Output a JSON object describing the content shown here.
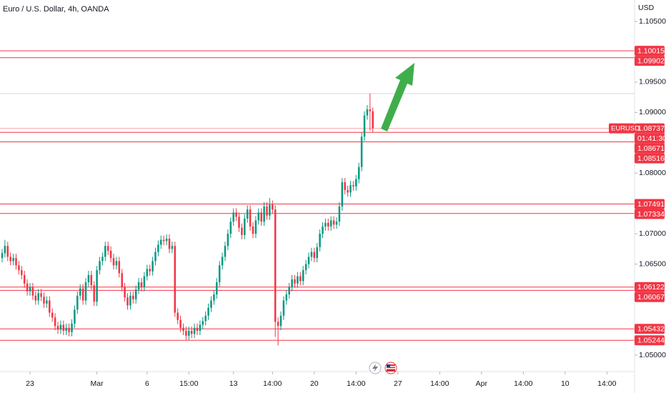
{
  "chart_data": {
    "type": "candlestick",
    "title": "Euro / U.S. Dollar, 4h, OANDA",
    "y_axis_label": "USD",
    "up_color": "#089981",
    "down_color": "#f23645",
    "level_color": "#f23645",
    "ylim": [
      1.04729,
      1.10853
    ],
    "yticks": [
      {
        "value": 1.105,
        "label": "1.10500"
      },
      {
        "value": 1.095,
        "label": "1.09500"
      },
      {
        "value": 1.09,
        "label": "1.09000"
      },
      {
        "value": 1.08,
        "label": "1.08000"
      },
      {
        "value": 1.07,
        "label": "1.07000"
      },
      {
        "value": 1.065,
        "label": "1.06500"
      },
      {
        "value": 1.05,
        "label": "1.05000"
      }
    ],
    "xlim": [
      -0.77,
      226.92
    ],
    "xticks": [
      {
        "value": 10,
        "label": "23"
      },
      {
        "value": 34,
        "label": "Mar"
      },
      {
        "value": 52,
        "label": "6"
      },
      {
        "value": 67,
        "label": "15:00"
      },
      {
        "value": 83,
        "label": "13"
      },
      {
        "value": 97,
        "label": "14:00"
      },
      {
        "value": 112,
        "label": "20"
      },
      {
        "value": 127,
        "label": "14:00"
      },
      {
        "value": 142,
        "label": "27"
      },
      {
        "value": 157,
        "label": "14:00"
      },
      {
        "value": 172,
        "label": "Apr"
      },
      {
        "value": 187,
        "label": "14:00"
      },
      {
        "value": 202,
        "label": "10"
      },
      {
        "value": 217,
        "label": "14:00"
      }
    ],
    "reference_line": 1.0931,
    "current_price": {
      "symbol": "EURUSD",
      "value": 1.08737,
      "label": "1.08737",
      "countdown": "01:41:30"
    },
    "levels": [
      {
        "value": 1.10015,
        "label": "1.10015"
      },
      {
        "value": 1.09902,
        "label": "1.09902"
      },
      {
        "value": 1.08671,
        "label": "1.08671"
      },
      {
        "value": 1.08516,
        "label": "1.08516"
      },
      {
        "value": 1.07491,
        "label": "1.07491"
      },
      {
        "value": 1.07334,
        "label": "1.07334"
      },
      {
        "value": 1.06122,
        "label": "1.06122"
      },
      {
        "value": 1.06067,
        "label": "1.06067"
      },
      {
        "value": 1.05432,
        "label": "1.05432"
      },
      {
        "value": 1.05244,
        "label": "1.05244"
      }
    ],
    "open": [
      1.066,
      1.0668,
      1.068,
      1.0662,
      1.0655,
      1.066,
      1.0648,
      1.064,
      1.0632,
      1.0618,
      1.0605,
      1.0612,
      1.0598,
      1.059,
      1.0602,
      1.0596,
      1.0585,
      1.059,
      1.057,
      1.0562,
      1.0548,
      1.0542,
      1.055,
      1.054,
      1.0545,
      1.0538,
      1.0552,
      1.0575,
      1.0598,
      1.061,
      1.059,
      1.062,
      1.0632,
      1.0615,
      1.0588,
      1.064,
      1.0655,
      1.0662,
      1.068,
      1.0672,
      1.066,
      1.0648,
      1.0655,
      1.0635,
      1.0612,
      1.0595,
      1.0582,
      1.0598,
      1.0592,
      1.0608,
      1.062,
      1.0612,
      1.063,
      1.0642,
      1.0638,
      1.0655,
      1.067,
      1.0682,
      1.069,
      1.0688,
      1.0692,
      1.0675,
      1.068,
      1.057,
      1.0558,
      1.0545,
      1.054,
      1.0532,
      1.054,
      1.0535,
      1.0545,
      1.054,
      1.055,
      1.0556,
      1.0565,
      1.0578,
      1.059,
      1.06,
      1.062,
      1.0648,
      1.0662,
      1.068,
      1.07,
      1.072,
      1.0735,
      1.0728,
      1.071,
      1.0698,
      1.0725,
      1.074,
      1.0712,
      1.07,
      1.0722,
      1.0735,
      1.072,
      1.0745,
      1.073,
      1.0748,
      1.074,
      1.0555,
      1.0548,
      1.0565,
      1.059,
      1.06,
      1.0612,
      1.0625,
      1.0618,
      1.063,
      1.0622,
      1.064,
      1.065,
      1.0662,
      1.067,
      1.066,
      1.0678,
      1.07,
      1.0712,
      1.0718,
      1.0712,
      1.0722,
      1.0715,
      1.072,
      1.0745,
      1.0785,
      1.0772,
      1.0768,
      1.078,
      1.0778,
      1.079,
      1.081,
      1.086,
      1.0895,
      1.0905,
      1.0902
    ],
    "high": [
      1.0675,
      1.069,
      1.0687,
      1.0669,
      1.0667,
      1.0667,
      1.0655,
      1.0647,
      1.0639,
      1.0625,
      1.0619,
      1.0619,
      1.0605,
      1.0609,
      1.0609,
      1.0603,
      1.0597,
      1.0597,
      1.0577,
      1.0569,
      1.0555,
      1.0557,
      1.0557,
      1.0552,
      1.0552,
      1.0559,
      1.0582,
      1.0605,
      1.0617,
      1.0617,
      1.0627,
      1.0639,
      1.0639,
      1.0622,
      1.0647,
      1.0662,
      1.0669,
      1.0687,
      1.0687,
      1.0679,
      1.0667,
      1.0662,
      1.0662,
      1.0642,
      1.0619,
      1.0602,
      1.0605,
      1.0605,
      1.0615,
      1.0627,
      1.0627,
      1.0637,
      1.0649,
      1.0649,
      1.0662,
      1.0677,
      1.0689,
      1.0697,
      1.0697,
      1.0699,
      1.0699,
      1.0687,
      1.0687,
      1.0577,
      1.0565,
      1.0552,
      1.0547,
      1.0547,
      1.0547,
      1.0552,
      1.0552,
      1.0557,
      1.0563,
      1.0572,
      1.0585,
      1.0597,
      1.0607,
      1.0627,
      1.0655,
      1.0669,
      1.0687,
      1.0707,
      1.0727,
      1.0742,
      1.0742,
      1.0735,
      1.0717,
      1.0732,
      1.0747,
      1.0747,
      1.0719,
      1.0729,
      1.0742,
      1.0742,
      1.0752,
      1.0752,
      1.0759,
      1.0755,
      1.0747,
      1.0562,
      1.0572,
      1.0597,
      1.0607,
      1.0619,
      1.0632,
      1.0632,
      1.0637,
      1.0637,
      1.0647,
      1.0657,
      1.0669,
      1.0677,
      1.0677,
      1.0685,
      1.0707,
      1.0719,
      1.0725,
      1.0725,
      1.0729,
      1.0729,
      1.0727,
      1.0752,
      1.0792,
      1.0792,
      1.0779,
      1.0787,
      1.0787,
      1.0797,
      1.0817,
      1.0867,
      1.0902,
      1.0912,
      1.0931,
      1.0908
    ],
    "low": [
      1.0653,
      1.0661,
      1.0655,
      1.0648,
      1.0648,
      1.0641,
      1.0633,
      1.0625,
      1.0611,
      1.0598,
      1.0598,
      1.0591,
      1.0583,
      1.0583,
      1.0589,
      1.0578,
      1.0578,
      1.0563,
      1.0555,
      1.0541,
      1.0535,
      1.0535,
      1.0533,
      1.0533,
      1.0531,
      1.0531,
      1.0545,
      1.0568,
      1.0591,
      1.0583,
      1.0583,
      1.0613,
      1.0608,
      1.0581,
      1.0581,
      1.0633,
      1.0648,
      1.0655,
      1.0665,
      1.0653,
      1.0641,
      1.0641,
      1.0628,
      1.0605,
      1.0588,
      1.0575,
      1.0575,
      1.0585,
      1.0585,
      1.0601,
      1.0605,
      1.0605,
      1.0623,
      1.0631,
      1.0631,
      1.0648,
      1.0663,
      1.0675,
      1.0681,
      1.0681,
      1.0668,
      1.0668,
      1.0563,
      1.0551,
      1.0538,
      1.0533,
      1.0525,
      1.0525,
      1.0528,
      1.0528,
      1.0533,
      1.0533,
      1.0543,
      1.0549,
      1.0558,
      1.0571,
      1.0583,
      1.0593,
      1.0613,
      1.0641,
      1.0655,
      1.0673,
      1.0693,
      1.0713,
      1.0721,
      1.0703,
      1.0691,
      1.0691,
      1.0718,
      1.0705,
      1.0693,
      1.0693,
      1.0715,
      1.0713,
      1.0713,
      1.0723,
      1.0723,
      1.0733,
      1.053,
      1.0516,
      1.0541,
      1.0558,
      1.0583,
      1.0593,
      1.0605,
      1.0611,
      1.0611,
      1.0615,
      1.0615,
      1.0633,
      1.0643,
      1.0655,
      1.0653,
      1.0653,
      1.0671,
      1.0693,
      1.0705,
      1.0705,
      1.0705,
      1.0708,
      1.0708,
      1.0713,
      1.0738,
      1.0765,
      1.0761,
      1.0761,
      1.0771,
      1.0771,
      1.0783,
      1.0803,
      1.0853,
      1.0888,
      1.087,
      1.0867
    ],
    "close": [
      1.0668,
      1.068,
      1.0662,
      1.0655,
      1.066,
      1.0648,
      1.064,
      1.0632,
      1.0618,
      1.0605,
      1.0612,
      1.0598,
      1.059,
      1.0602,
      1.0596,
      1.0585,
      1.059,
      1.057,
      1.0562,
      1.0548,
      1.0542,
      1.055,
      1.054,
      1.0545,
      1.0538,
      1.0552,
      1.0575,
      1.0598,
      1.061,
      1.059,
      1.062,
      1.0632,
      1.0615,
      1.0588,
      1.064,
      1.0655,
      1.0662,
      1.068,
      1.0672,
      1.066,
      1.0648,
      1.0655,
      1.0635,
      1.0612,
      1.0595,
      1.0582,
      1.0598,
      1.0592,
      1.0608,
      1.062,
      1.0612,
      1.063,
      1.0642,
      1.0638,
      1.0655,
      1.067,
      1.0682,
      1.069,
      1.0688,
      1.0692,
      1.0675,
      1.068,
      1.057,
      1.0558,
      1.0545,
      1.054,
      1.0532,
      1.054,
      1.0535,
      1.0545,
      1.054,
      1.055,
      1.0556,
      1.0565,
      1.0578,
      1.059,
      1.06,
      1.062,
      1.0648,
      1.0662,
      1.068,
      1.07,
      1.072,
      1.0735,
      1.0728,
      1.071,
      1.0698,
      1.0725,
      1.074,
      1.0712,
      1.07,
      1.0722,
      1.0735,
      1.072,
      1.0745,
      1.073,
      1.0748,
      1.074,
      1.0555,
      1.0548,
      1.0565,
      1.059,
      1.06,
      1.0612,
      1.0625,
      1.0618,
      1.063,
      1.0622,
      1.064,
      1.065,
      1.0662,
      1.067,
      1.066,
      1.0678,
      1.07,
      1.0712,
      1.0718,
      1.0712,
      1.0722,
      1.0715,
      1.072,
      1.0745,
      1.0785,
      1.0772,
      1.0768,
      1.078,
      1.0778,
      1.079,
      1.081,
      1.086,
      1.0895,
      1.0905,
      1.0902,
      1.0874
    ]
  }
}
